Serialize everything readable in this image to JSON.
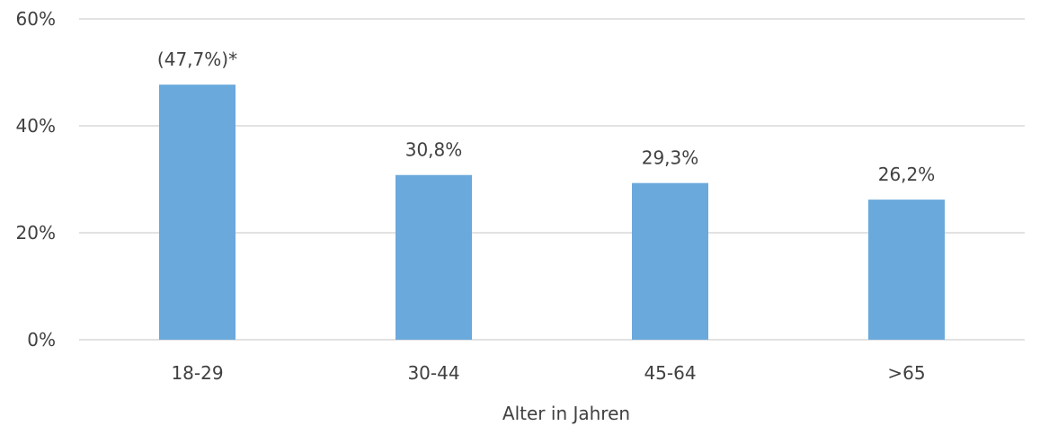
{
  "chart_data": {
    "type": "bar",
    "title": "",
    "xlabel": "Alter in Jahren",
    "ylabel": "",
    "categories": [
      "18-29",
      "30-44",
      "45-64",
      ">65"
    ],
    "values": [
      47.7,
      30.8,
      29.3,
      26.2
    ],
    "data_labels": [
      "(47,7%)*",
      "30,8%",
      "29,3%",
      "26,2%"
    ],
    "ylim": [
      0,
      60
    ],
    "yticks": [
      0,
      20,
      40,
      60
    ],
    "ytick_labels": [
      "0%",
      "20%",
      "40%",
      "60%"
    ],
    "grid": true,
    "legend": "none",
    "colors": {
      "bar": "#6aa9dc",
      "grid": "#d9d9d9",
      "text": "#404040"
    }
  }
}
